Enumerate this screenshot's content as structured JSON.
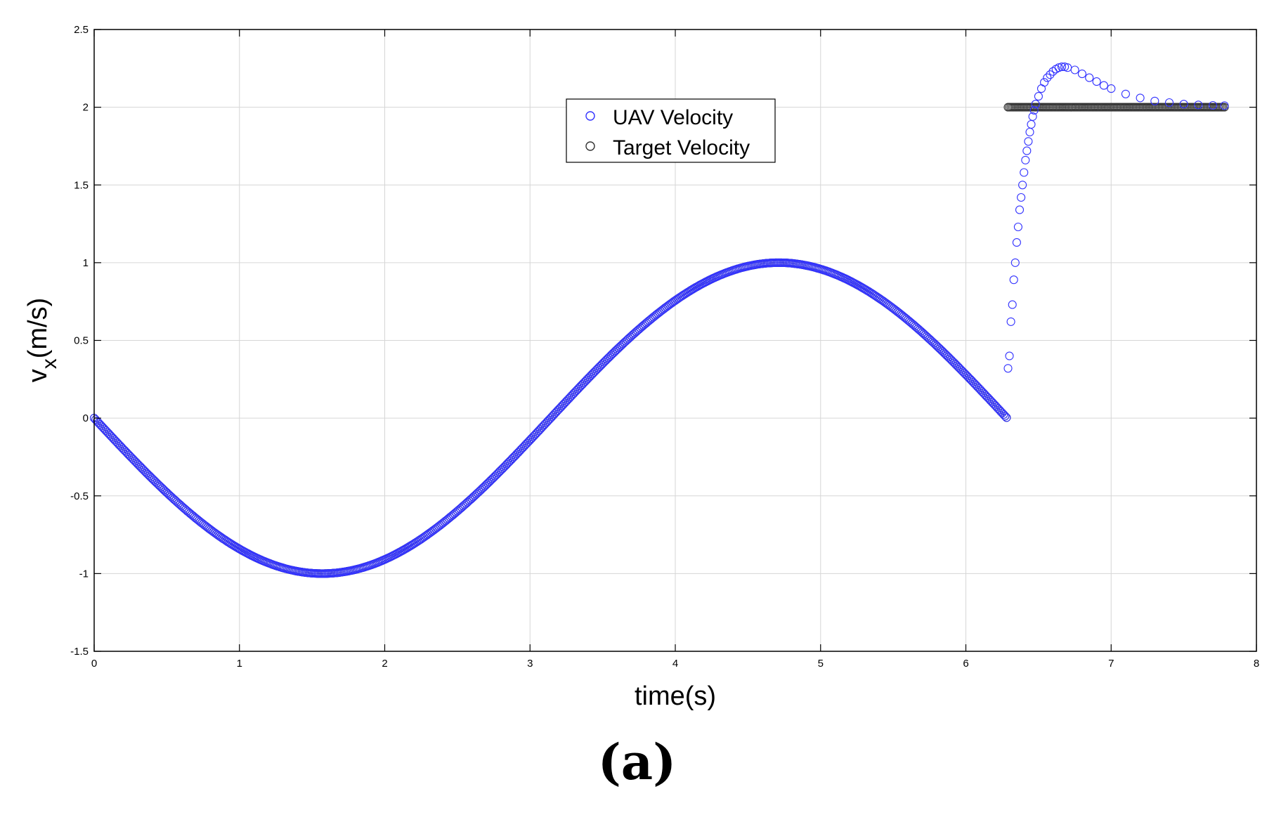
{
  "panel_label": "(a)",
  "chart_data": {
    "type": "scatter",
    "xlabel": "time(s)",
    "ylabel_main": "v",
    "ylabel_sub": "x",
    "ylabel_rest": "(m/s)",
    "xlim": [
      0,
      8
    ],
    "ylim": [
      -1.5,
      2.5
    ],
    "x_ticks": [
      0,
      1,
      2,
      3,
      4,
      5,
      6,
      7,
      8
    ],
    "y_ticks": [
      -1.5,
      -1,
      -0.5,
      0,
      0.5,
      1,
      1.5,
      2,
      2.5
    ],
    "x_tick_labels": [
      "0",
      "1",
      "2",
      "3",
      "4",
      "5",
      "6",
      "7",
      "8"
    ],
    "y_tick_labels": [
      "-1.5",
      "-1",
      "-0.5",
      "0",
      "0.5",
      "1",
      "1.5",
      "2",
      "2.5"
    ],
    "grid": true,
    "legend": {
      "position": "top-center"
    },
    "marker": "open-circle",
    "series": [
      {
        "name": "UAV Velocity",
        "color": "#3333ff",
        "segments": [
          {
            "function": "-sin(t)",
            "x_range": [
              0,
              6.28
            ],
            "step": 0.01
          },
          {
            "x": [
              6.29,
              6.3,
              6.31,
              6.32,
              6.33,
              6.34,
              6.35,
              6.36,
              6.37,
              6.38,
              6.39,
              6.4,
              6.41,
              6.42,
              6.43,
              6.44,
              6.45,
              6.46,
              6.47,
              6.48,
              6.5,
              6.52,
              6.54,
              6.56,
              6.58,
              6.6,
              6.62,
              6.64,
              6.66,
              6.68,
              6.7,
              6.75,
              6.8,
              6.85,
              6.9,
              6.95,
              7.0,
              7.1,
              7.2,
              7.3,
              7.4,
              7.5,
              7.6,
              7.7,
              7.78
            ],
            "y": [
              0.32,
              0.4,
              0.62,
              0.73,
              0.89,
              1.0,
              1.13,
              1.23,
              1.34,
              1.42,
              1.5,
              1.58,
              1.66,
              1.72,
              1.78,
              1.84,
              1.89,
              1.94,
              1.98,
              2.02,
              2.07,
              2.12,
              2.16,
              2.19,
              2.21,
              2.23,
              2.245,
              2.255,
              2.26,
              2.26,
              2.255,
              2.24,
              2.215,
              2.19,
              2.165,
              2.14,
              2.12,
              2.085,
              2.06,
              2.04,
              2.03,
              2.02,
              2.015,
              2.012,
              2.01
            ]
          }
        ]
      },
      {
        "name": "Target Velocity",
        "color": "#333333",
        "segments": [
          {
            "function": "-sin(t)",
            "x_range": [
              0,
              6.28
            ],
            "step": 0.01
          },
          {
            "constant": 2,
            "x_range": [
              6.29,
              7.78
            ],
            "step": 0.01
          }
        ]
      }
    ]
  }
}
